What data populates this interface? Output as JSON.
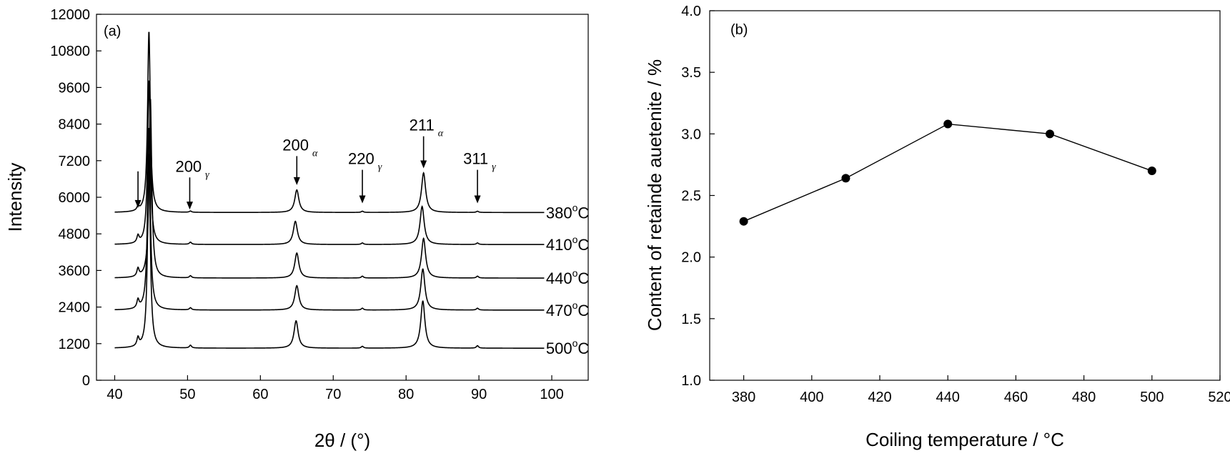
{
  "chart_data": [
    {
      "panel": "(a)",
      "type": "line",
      "xlabel": "2θ / (°)",
      "ylabel": "Intensity",
      "xlim": [
        37.5,
        105
      ],
      "ylim": [
        0,
        12000
      ],
      "xticks": [
        "40",
        "50",
        "60",
        "70",
        "80",
        "90",
        "100"
      ],
      "yticks": [
        "0",
        "1200",
        "2400",
        "3600",
        "4800",
        "6000",
        "7200",
        "8400",
        "9600",
        "10800",
        "12000"
      ],
      "grid": false,
      "series": [
        {
          "name": "380°C",
          "baseline": 5500,
          "peaks": [
            {
              "x": 43.2,
              "h": 120
            },
            {
              "x": 44.7,
              "h": 5950
            },
            {
              "x": 50.4,
              "h": 40
            },
            {
              "x": 65.0,
              "h": 740
            },
            {
              "x": 74.0,
              "h": 40
            },
            {
              "x": 82.4,
              "h": 1300
            },
            {
              "x": 89.8,
              "h": 40
            }
          ]
        },
        {
          "name": "410°C",
          "baseline": 4450,
          "peaks": [
            {
              "x": 43.2,
              "h": 230
            },
            {
              "x": 44.7,
              "h": 5400
            },
            {
              "x": 50.4,
              "h": 70
            },
            {
              "x": 64.8,
              "h": 760
            },
            {
              "x": 74.0,
              "h": 50
            },
            {
              "x": 82.2,
              "h": 1250
            },
            {
              "x": 89.8,
              "h": 50
            }
          ]
        },
        {
          "name": "440°C",
          "baseline": 3350,
          "peaks": [
            {
              "x": 43.2,
              "h": 260
            },
            {
              "x": 44.9,
              "h": 5900
            },
            {
              "x": 50.4,
              "h": 70
            },
            {
              "x": 65.0,
              "h": 820
            },
            {
              "x": 74.0,
              "h": 60
            },
            {
              "x": 82.4,
              "h": 1300
            },
            {
              "x": 89.8,
              "h": 60
            }
          ]
        },
        {
          "name": "470°C",
          "baseline": 2300,
          "peaks": [
            {
              "x": 43.2,
              "h": 270
            },
            {
              "x": 44.7,
              "h": 6000
            },
            {
              "x": 50.4,
              "h": 70
            },
            {
              "x": 65.0,
              "h": 800
            },
            {
              "x": 74.0,
              "h": 60
            },
            {
              "x": 82.3,
              "h": 1350
            },
            {
              "x": 89.8,
              "h": 60
            }
          ]
        },
        {
          "name": "500°C",
          "baseline": 1050,
          "peaks": [
            {
              "x": 43.2,
              "h": 270
            },
            {
              "x": 44.7,
              "h": 6400
            },
            {
              "x": 50.4,
              "h": 90
            },
            {
              "x": 64.9,
              "h": 900
            },
            {
              "x": 74.0,
              "h": 60
            },
            {
              "x": 82.3,
              "h": 1550
            },
            {
              "x": 89.8,
              "h": 80
            }
          ]
        }
      ],
      "annotations": [
        {
          "text": "",
          "sub": "",
          "x": 43.2,
          "arrow_top": 6850,
          "arrow_bottom": 5650
        },
        {
          "text": "200",
          "sub": "γ",
          "x": 50.3,
          "arrow_top": 6650,
          "arrow_bottom": 5600
        },
        {
          "text": "200",
          "sub": "α",
          "x": 65.0,
          "arrow_top": 7350,
          "arrow_bottom": 6400
        },
        {
          "text": "220",
          "sub": "γ",
          "x": 74.0,
          "arrow_top": 6900,
          "arrow_bottom": 5800
        },
        {
          "text": "211",
          "sub": "α",
          "x": 82.4,
          "arrow_top": 8000,
          "arrow_bottom": 6950
        },
        {
          "text": "311",
          "sub": "γ",
          "x": 89.8,
          "arrow_top": 6900,
          "arrow_bottom": 5800
        }
      ]
    },
    {
      "panel": "(b)",
      "type": "line",
      "xlabel": "Coiling temperature / °C",
      "ylabel": "Content of retainde auetenite / %",
      "xlim": [
        370,
        520
      ],
      "ylim": [
        1.0,
        4.0
      ],
      "xticks": [
        "380",
        "400",
        "420",
        "440",
        "460",
        "480",
        "500",
        "520"
      ],
      "yticks": [
        "1.0",
        "1.5",
        "2.0",
        "2.5",
        "3.0",
        "3.5",
        "4.0"
      ],
      "grid": false,
      "x": [
        380,
        410,
        440,
        470,
        500
      ],
      "y": [
        2.29,
        2.64,
        3.08,
        3.0,
        2.7
      ]
    }
  ]
}
